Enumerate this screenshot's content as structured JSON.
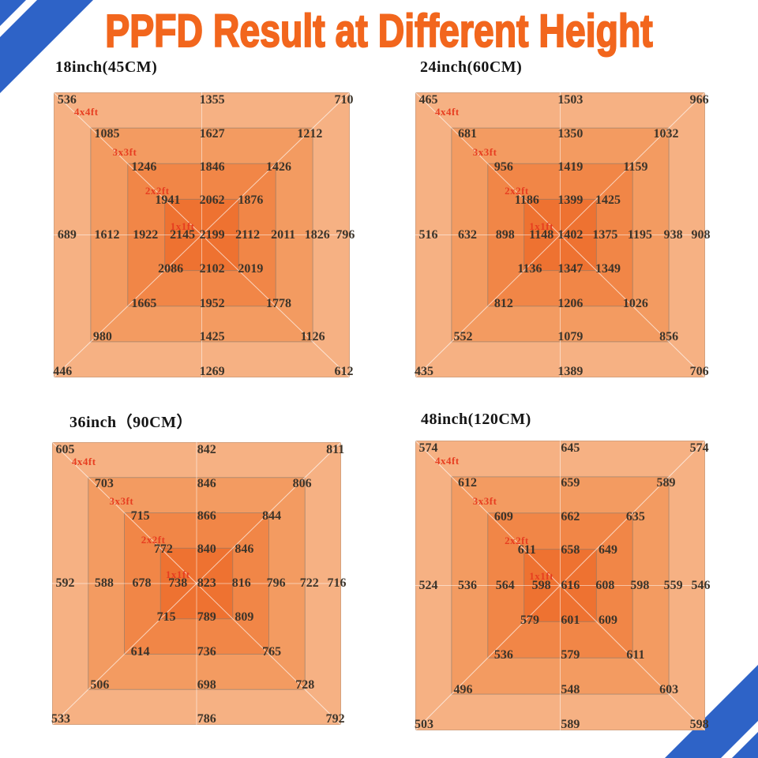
{
  "page": {
    "title": "PPFD Result at Different Height",
    "title_color": "#f2661d",
    "stripe_color": "#2e63c7",
    "background": "#ffffff",
    "value_text_color": "#3c342a"
  },
  "rings": {
    "labels": [
      "4x4ft",
      "3x3ft",
      "2x2ft",
      "1x1ft"
    ],
    "colors": [
      "#f6b183",
      "#f39b61",
      "#f18647",
      "#ee7231"
    ],
    "label_color": "#e73d20"
  },
  "chart_data": [
    {
      "type": "heatmap",
      "title": "18inch(45CM)",
      "rings": [
        "4x4ft",
        "3x3ft",
        "2x2ft",
        "1x1ft"
      ],
      "rows": [
        [
          "536",
          "1355",
          "710"
        ],
        [
          "1085",
          "1627",
          "1212"
        ],
        [
          "1246",
          "1846",
          "1426"
        ],
        [
          "1941",
          "2062",
          "1876"
        ],
        [
          "689",
          "1612",
          "1922",
          "2145",
          "2199",
          "2112",
          "2011",
          "1826",
          "796"
        ],
        [
          "2086",
          "2102",
          "2019"
        ],
        [
          "1665",
          "1952",
          "1778"
        ],
        [
          "980",
          "1425",
          "1126"
        ],
        [
          "446",
          "1269",
          "612"
        ]
      ]
    },
    {
      "type": "heatmap",
      "title": "24inch(60CM)",
      "rings": [
        "4x4ft",
        "3x3ft",
        "2x2ft",
        "1x1ft"
      ],
      "rows": [
        [
          "465",
          "1503",
          "966"
        ],
        [
          "681",
          "1350",
          "1032"
        ],
        [
          "956",
          "1419",
          "1159"
        ],
        [
          "1186",
          "1399",
          "1425"
        ],
        [
          "516",
          "632",
          "898",
          "1148",
          "1402",
          "1375",
          "1195",
          "938",
          "908"
        ],
        [
          "1136",
          "1347",
          "1349"
        ],
        [
          "812",
          "1206",
          "1026"
        ],
        [
          "552",
          "1079",
          "856"
        ],
        [
          "435",
          "1389",
          "706"
        ]
      ]
    },
    {
      "type": "heatmap",
      "title": "36inch（90CM）",
      "rings": [
        "4x4ft",
        "3x3ft",
        "2x2ft",
        "1x1ft"
      ],
      "rows": [
        [
          "605",
          "842",
          "811"
        ],
        [
          "703",
          "846",
          "806"
        ],
        [
          "715",
          "866",
          "844"
        ],
        [
          "772",
          "840",
          "846"
        ],
        [
          "592",
          "588",
          "678",
          "738",
          "823",
          "816",
          "796",
          "722",
          "716"
        ],
        [
          "715",
          "789",
          "809"
        ],
        [
          "614",
          "736",
          "765"
        ],
        [
          "506",
          "698",
          "728"
        ],
        [
          "533",
          "786",
          "792"
        ]
      ]
    },
    {
      "type": "heatmap",
      "title": "48inch(120CM)",
      "rings": [
        "4x4ft",
        "3x3ft",
        "2x2ft",
        "1x1ft"
      ],
      "rows": [
        [
          "574",
          "645",
          "574"
        ],
        [
          "612",
          "659",
          "589"
        ],
        [
          "609",
          "662",
          "635"
        ],
        [
          "611",
          "658",
          "649"
        ],
        [
          "524",
          "536",
          "564",
          "598",
          "616",
          "608",
          "598",
          "559",
          "546"
        ],
        [
          "579",
          "601",
          "609"
        ],
        [
          "536",
          "579",
          "611"
        ],
        [
          "496",
          "548",
          "603"
        ],
        [
          "503",
          "589",
          "598"
        ]
      ]
    }
  ]
}
